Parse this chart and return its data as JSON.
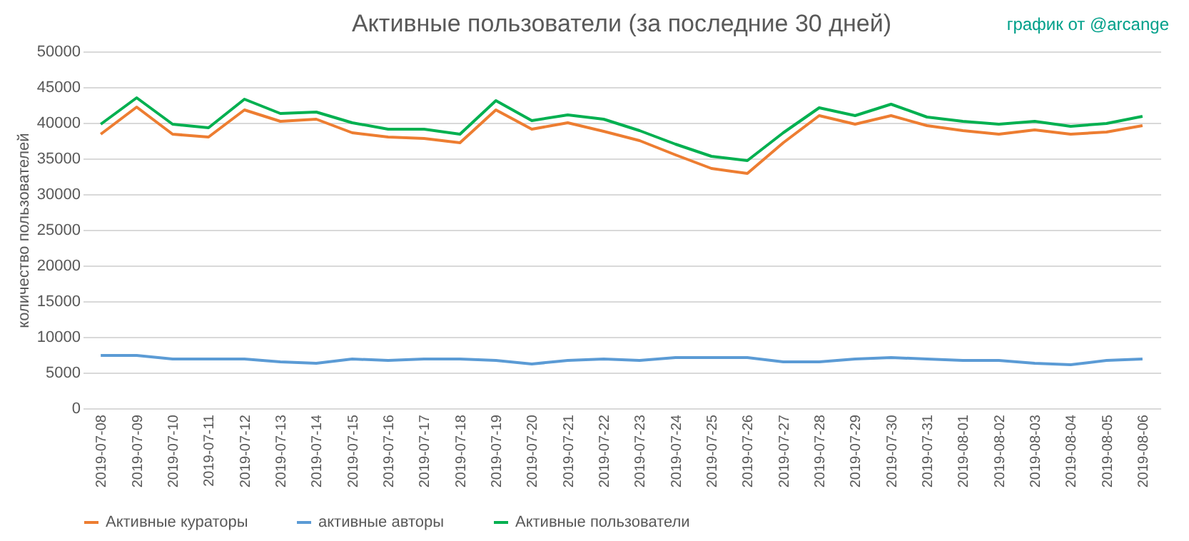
{
  "chart_data": {
    "type": "line",
    "title": "Активные пользователи (за последние 30 дней)",
    "ylabel": "количество пользователей",
    "annotations": [
      "график от @arcange"
    ],
    "categories": [
      "2019-07-08",
      "2019-07-09",
      "2019-07-10",
      "2019-07-11",
      "2019-07-12",
      "2019-07-13",
      "2019-07-14",
      "2019-07-15",
      "2019-07-16",
      "2019-07-17",
      "2019-07-18",
      "2019-07-19",
      "2019-07-20",
      "2019-07-21",
      "2019-07-22",
      "2019-07-23",
      "2019-07-24",
      "2019-07-25",
      "2019-07-26",
      "2019-07-27",
      "2019-07-28",
      "2019-07-29",
      "2019-07-30",
      "2019-07-31",
      "2019-08-01",
      "2019-08-02",
      "2019-08-03",
      "2019-08-04",
      "2019-08-05",
      "2019-08-06"
    ],
    "series": [
      {
        "name": "Активные кураторы",
        "color": "#ed7d31",
        "values": [
          38400,
          42200,
          38400,
          38000,
          41800,
          40200,
          40500,
          38600,
          38000,
          37800,
          37200,
          41800,
          39100,
          40000,
          38800,
          37500,
          35500,
          33600,
          32900,
          37200,
          41000,
          39800,
          41000,
          39600,
          38900,
          38400,
          39000,
          38400,
          38700,
          39600
        ]
      },
      {
        "name": "активные авторы",
        "color": "#5b9bd5",
        "values": [
          7400,
          7400,
          6900,
          6900,
          6900,
          6500,
          6300,
          6900,
          6700,
          6900,
          6900,
          6700,
          6200,
          6700,
          6900,
          6700,
          7100,
          7100,
          7100,
          6500,
          6500,
          6900,
          7100,
          6900,
          6700,
          6700,
          6300,
          6100,
          6700,
          6900
        ]
      },
      {
        "name": "Активные пользователи",
        "color": "#00b050",
        "values": [
          39800,
          43500,
          39800,
          39300,
          43300,
          41300,
          41500,
          40000,
          39100,
          39100,
          38400,
          43100,
          40300,
          41100,
          40500,
          38900,
          37000,
          35300,
          34700,
          38600,
          42100,
          41000,
          42600,
          40800,
          40200,
          39800,
          40200,
          39500,
          39900,
          40900
        ]
      }
    ],
    "ylim": [
      0,
      50000
    ],
    "yticks": [
      0,
      5000,
      10000,
      15000,
      20000,
      25000,
      30000,
      35000,
      40000,
      45000,
      50000
    ],
    "grid": "y",
    "legend": "bottom",
    "line_style": "solid",
    "marker": "none"
  }
}
